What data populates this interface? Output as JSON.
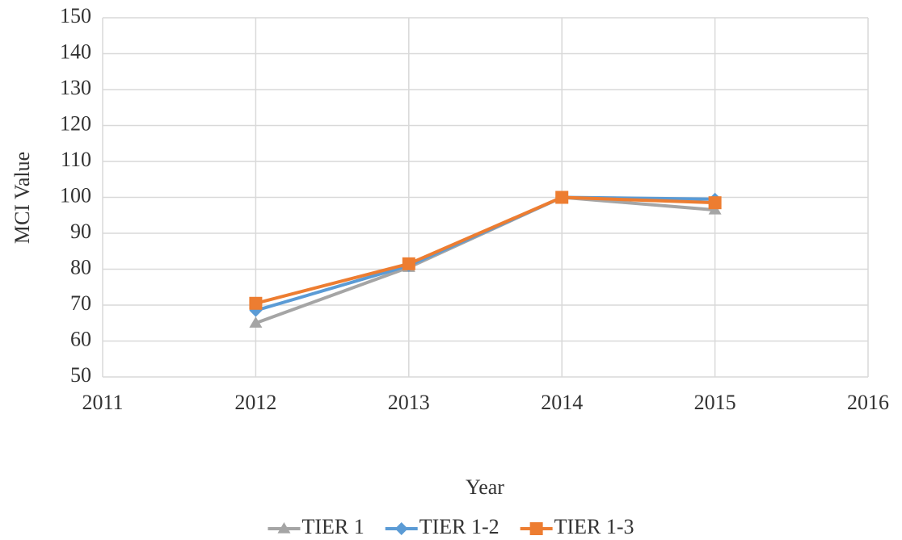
{
  "chart_data": {
    "type": "line",
    "x_label": "Year",
    "y_label": "MCI Value",
    "x": [
      2012,
      2013,
      2014,
      2015
    ],
    "series": [
      {
        "name": "TIER 1",
        "color": "#a5a5a5",
        "marker": "triangle",
        "values": [
          65,
          80.5,
          100,
          96.5
        ]
      },
      {
        "name": "TIER 1-2",
        "color": "#5b9bd5",
        "marker": "diamond",
        "values": [
          68.5,
          81,
          100,
          99.5
        ]
      },
      {
        "name": "TIER 1-3",
        "color": "#ed7d31",
        "marker": "square",
        "values": [
          70.5,
          81.5,
          100,
          98.5
        ]
      }
    ],
    "xlim": [
      2011,
      2016
    ],
    "xticks": [
      2011,
      2012,
      2013,
      2014,
      2015,
      2016
    ],
    "ylim": [
      50,
      150
    ],
    "yticks": [
      50,
      60,
      70,
      80,
      90,
      100,
      110,
      120,
      130,
      140,
      150
    ],
    "grid": true,
    "legend": "bottom"
  }
}
